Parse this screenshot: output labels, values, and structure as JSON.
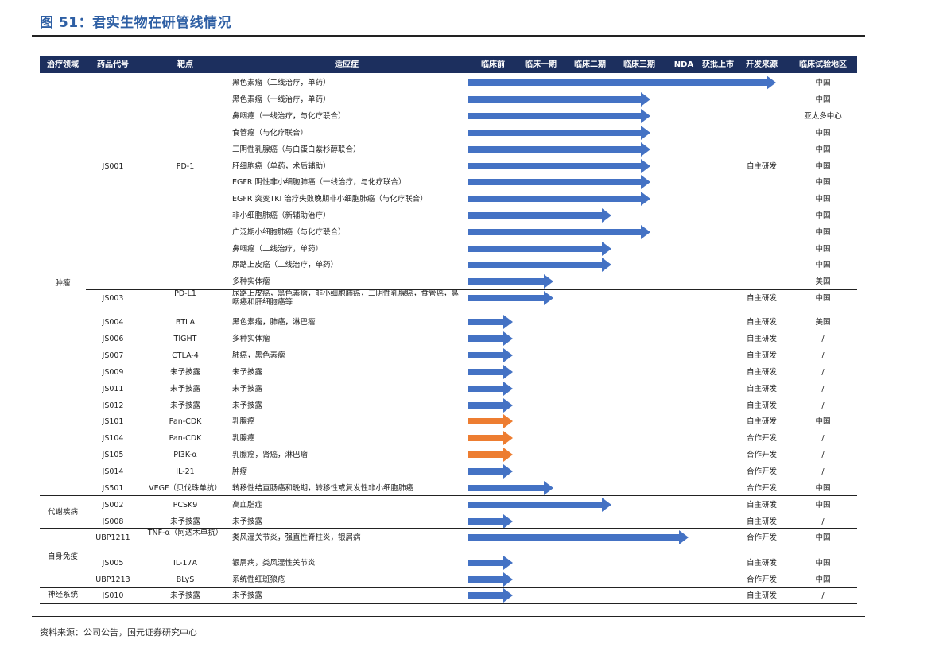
{
  "title": "图 51：君实生物在研管线情况",
  "source": "资料来源：公司公告，国元证券研究中心",
  "headers": [
    "治疗领域",
    "药品代号",
    "靶点",
    "适应症",
    "临床前",
    "临床一期",
    "临床二期",
    "临床三期",
    "NDA",
    "获批上市",
    "开发来源",
    "临床试验地区"
  ],
  "areas": [
    "肿瘤",
    "代谢疾病",
    "自身免疫",
    "神经系统"
  ],
  "rows": [
    {
      "drug": "",
      "target": "",
      "ind": "黑色素瘤（二线治疗，单药）",
      "src": "",
      "loc": "中国",
      "stage": 6,
      "color": "#4472c4"
    },
    {
      "drug": "",
      "target": "",
      "ind": "黑色素瘤（一线治疗，单药）",
      "src": "",
      "loc": "中国",
      "stage": 4,
      "color": "#4472c4"
    },
    {
      "drug": "",
      "target": "",
      "ind": "鼻咽癌（一线治疗，与化疗联合）",
      "src": "",
      "loc": "亚太多中心",
      "stage": 4,
      "color": "#4472c4"
    },
    {
      "drug": "",
      "target": "",
      "ind": "食管癌（与化疗联合）",
      "src": "",
      "loc": "中国",
      "stage": 4,
      "color": "#4472c4"
    },
    {
      "drug": "",
      "target": "",
      "ind": "三阴性乳腺癌（与白蛋白紫杉醇联合）",
      "src": "",
      "loc": "中国",
      "stage": 4,
      "color": "#4472c4"
    },
    {
      "drug": "JS001",
      "target": "PD-1",
      "ind": "肝细胞癌（单药，术后辅助）",
      "src": "自主研发",
      "loc": "中国",
      "stage": 4,
      "color": "#4472c4"
    },
    {
      "drug": "",
      "target": "",
      "ind": "EGFR 阴性非小细胞肺癌（一线治疗，与化疗联合）",
      "src": "",
      "loc": "中国",
      "stage": 4,
      "color": "#4472c4"
    },
    {
      "drug": "",
      "target": "",
      "ind": "EGFR 突变TKI 治疗失败晚期非小细胞肺癌（与化疗联合）",
      "src": "",
      "loc": "中国",
      "stage": 4,
      "color": "#4472c4"
    },
    {
      "drug": "",
      "target": "",
      "ind": "非小细胞肺癌（新辅助治疗）",
      "src": "",
      "loc": "中国",
      "stage": 3,
      "color": "#4472c4"
    },
    {
      "drug": "",
      "target": "",
      "ind": "广泛期小细胞肺癌（与化疗联合）",
      "src": "",
      "loc": "中国",
      "stage": 4,
      "color": "#4472c4"
    },
    {
      "drug": "",
      "target": "",
      "ind": "鼻咽癌（二线治疗，单药）",
      "src": "",
      "loc": "中国",
      "stage": 3,
      "color": "#4472c4"
    },
    {
      "drug": "",
      "target": "",
      "ind": "尿路上皮癌（二线治疗，单药）",
      "src": "",
      "loc": "中国",
      "stage": 3,
      "color": "#4472c4"
    },
    {
      "drug": "",
      "target": "",
      "ind": "多种实体瘤",
      "src": "",
      "loc": "美国",
      "stage": 2,
      "color": "#4472c4"
    },
    {
      "drug": "JS003",
      "target": "PD-L1",
      "ind": "尿路上皮癌，黑色素瘤，非小细胞肺癌，三阴性乳腺癌，食管癌，鼻咽癌和肝细胞癌等",
      "src": "自主研发",
      "loc": "中国",
      "stage": 2,
      "color": "#4472c4"
    },
    {
      "drug": "JS004",
      "target": "BTLA",
      "ind": "黑色素瘤，肺癌，淋巴瘤",
      "src": "自主研发",
      "loc": "美国",
      "stage": 1,
      "color": "#4472c4"
    },
    {
      "drug": "JS006",
      "target": "TIGHT",
      "ind": "多种实体瘤",
      "src": "自主研发",
      "loc": "/",
      "stage": 1,
      "color": "#4472c4"
    },
    {
      "drug": "JS007",
      "target": "CTLA-4",
      "ind": "肺癌，黑色素瘤",
      "src": "自主研发",
      "loc": "/",
      "stage": 1,
      "color": "#4472c4"
    },
    {
      "drug": "JS009",
      "target": "未予披露",
      "ind": "未予披露",
      "src": "自主研发",
      "loc": "/",
      "stage": 1,
      "color": "#4472c4"
    },
    {
      "drug": "JS011",
      "target": "未予披露",
      "ind": "未予披露",
      "src": "自主研发",
      "loc": "/",
      "stage": 1,
      "color": "#4472c4"
    },
    {
      "drug": "JS012",
      "target": "未予披露",
      "ind": "未予披露",
      "src": "自主研发",
      "loc": "/",
      "stage": 1,
      "color": "#4472c4"
    },
    {
      "drug": "JS101",
      "target": "Pan-CDK",
      "ind": "乳腺癌",
      "src": "自主研发",
      "loc": "中国",
      "stage": 1,
      "color": "#ed7d31"
    },
    {
      "drug": "JS104",
      "target": "Pan-CDK",
      "ind": "乳腺癌",
      "src": "合作开发",
      "loc": "/",
      "stage": 1,
      "color": "#ed7d31"
    },
    {
      "drug": "JS105",
      "target": "PI3K-α",
      "ind": "乳腺癌，肾癌，淋巴瘤",
      "src": "合作开发",
      "loc": "/",
      "stage": 1,
      "color": "#ed7d31"
    },
    {
      "drug": "JS014",
      "target": "IL-21",
      "ind": "肿瘤",
      "src": "合作开发",
      "loc": "/",
      "stage": 1,
      "color": "#4472c4"
    },
    {
      "drug": "JS501",
      "target": "VEGF（贝伐珠单抗）",
      "ind": "转移性结直肠癌和晚期，转移性或复发性非小细胞肺癌",
      "src": "合作开发",
      "loc": "中国",
      "stage": 2,
      "color": "#4472c4"
    },
    {
      "drug": "JS002",
      "target": "PCSK9",
      "ind": "高血脂症",
      "src": "自主研发",
      "loc": "中国",
      "stage": 3,
      "color": "#4472c4"
    },
    {
      "drug": "JS008",
      "target": "未予披露",
      "ind": "未予披露",
      "src": "自主研发",
      "loc": "/",
      "stage": 1,
      "color": "#4472c4"
    },
    {
      "drug": "UBP1211",
      "target": "TNF-α（阿达木单抗）",
      "ind": "类风湿关节炎，强直性脊柱炎，银屑病",
      "src": "合作开发",
      "loc": "中国",
      "stage": 5,
      "color": "#4472c4"
    },
    {
      "drug": "JS005",
      "target": "IL-17A",
      "ind": "银屑病，类风湿性关节炎",
      "src": "自主研发",
      "loc": "中国",
      "stage": 1,
      "color": "#4472c4"
    },
    {
      "drug": "UBP1213",
      "target": "BLyS",
      "ind": "系统性红斑狼疮",
      "src": "合作开发",
      "loc": "中国",
      "stage": 1,
      "color": "#4472c4"
    },
    {
      "drug": "JS010",
      "target": "未予披露",
      "ind": "未予披露",
      "src": "自主研发",
      "loc": "/",
      "stage": 1,
      "color": "#4472c4"
    }
  ]
}
